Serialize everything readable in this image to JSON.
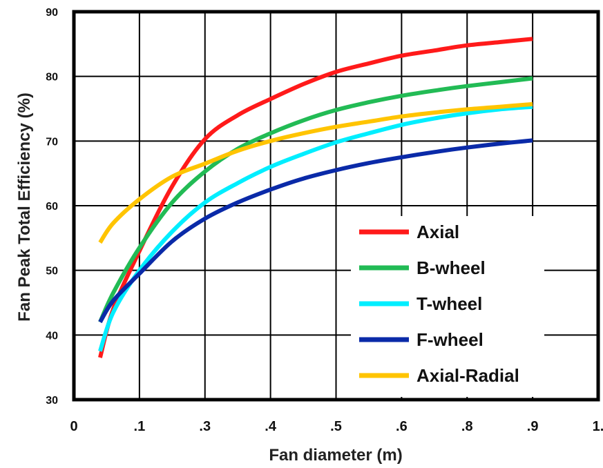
{
  "chart_data": {
    "type": "line",
    "title": "",
    "xlabel": "Fan diameter (m)",
    "ylabel": "Fan Peak Total Efficiency (%)",
    "x_tick_labels": [
      "0",
      ".1",
      ".3",
      ".4",
      ".5",
      ".6",
      ".8",
      ".9",
      "1."
    ],
    "y_ticks": [
      30,
      40,
      50,
      60,
      70,
      80,
      90
    ],
    "xlim": [
      0,
      8
    ],
    "ylim": [
      30,
      90
    ],
    "x_axis_note": "x values are tick positions (0 to 8 for labels 0 ... 1.)",
    "grid": true,
    "legend_position": "bottom-right",
    "series": [
      {
        "name": "Axial",
        "color": "#ff1a1a",
        "x": [
          0.4,
          0.6,
          1.0,
          1.5,
          2.0,
          2.5,
          3.0,
          3.5,
          4.0,
          4.5,
          5.0,
          5.5,
          6.0,
          6.5,
          7.0
        ],
        "y": [
          36.5,
          44,
          53,
          63,
          70.3,
          74,
          76.5,
          78.8,
          80.7,
          82,
          83.2,
          84,
          84.8,
          85.3,
          85.8
        ]
      },
      {
        "name": "B-wheel",
        "color": "#22bb55",
        "x": [
          0.4,
          0.6,
          1.0,
          1.5,
          2.0,
          2.5,
          3.0,
          3.5,
          4.0,
          4.5,
          5.0,
          5.5,
          6.0,
          6.5,
          7.0
        ],
        "y": [
          42,
          46.5,
          53.5,
          60.5,
          65.3,
          68.8,
          71.2,
          73.2,
          74.8,
          76,
          77,
          77.8,
          78.5,
          79.1,
          79.7
        ]
      },
      {
        "name": "T-wheel",
        "color": "#00eeff",
        "x": [
          0.4,
          0.6,
          1.0,
          1.5,
          2.0,
          2.5,
          3.0,
          3.5,
          4.0,
          4.5,
          5.0,
          5.5,
          6.0,
          6.5,
          7.0
        ],
        "y": [
          37.5,
          43.5,
          50,
          56,
          60.5,
          63.5,
          66,
          68,
          69.8,
          71.2,
          72.5,
          73.5,
          74.3,
          74.9,
          75.3
        ]
      },
      {
        "name": "F-wheel",
        "color": "#0a2aa8",
        "x": [
          0.4,
          0.6,
          1.0,
          1.5,
          2.0,
          2.5,
          3.0,
          3.5,
          4.0,
          4.5,
          5.0,
          5.5,
          6.0,
          6.5,
          7.0
        ],
        "y": [
          42,
          45.3,
          49.5,
          54.5,
          58,
          60.5,
          62.5,
          64.2,
          65.5,
          66.6,
          67.5,
          68.3,
          69,
          69.6,
          70.1
        ]
      },
      {
        "name": "Axial-Radial",
        "color": "#ffc400",
        "x": [
          0.4,
          0.6,
          1.0,
          1.5,
          2.0,
          2.5,
          3.0,
          3.5,
          4.0,
          4.5,
          5.0,
          5.5,
          6.0,
          6.5,
          7.0
        ],
        "y": [
          54.3,
          57.3,
          61,
          64.5,
          66.5,
          68.5,
          70,
          71.2,
          72.2,
          73,
          73.8,
          74.4,
          74.9,
          75.3,
          75.7
        ]
      }
    ]
  }
}
